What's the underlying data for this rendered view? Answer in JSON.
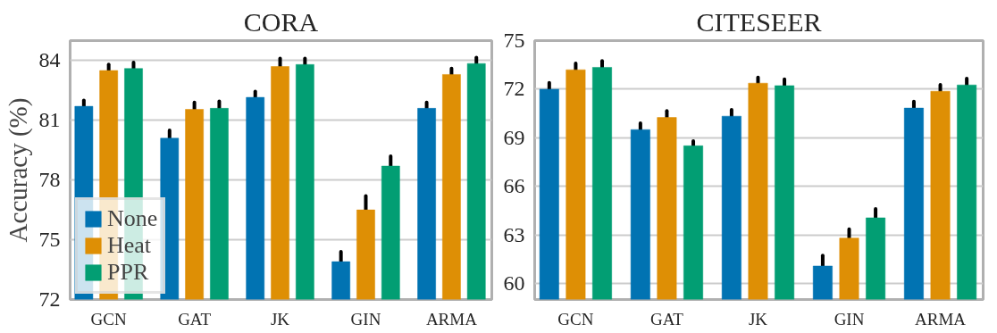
{
  "chart_data": [
    {
      "type": "bar",
      "title": "CORA",
      "ylabel": "Accuracy (%)",
      "categories": [
        "GCN",
        "GAT",
        "JK",
        "GIN",
        "ARMA"
      ],
      "ylim": [
        72,
        85
      ],
      "yticks": [
        72,
        75,
        78,
        81,
        84
      ],
      "grid": "y",
      "legend": "bottom left",
      "series": [
        {
          "name": "None",
          "color": "#0173b2",
          "values": [
            81.7,
            80.1,
            82.15,
            73.9,
            81.6
          ],
          "errors": [
            0.3,
            0.4,
            0.3,
            0.5,
            0.3
          ]
        },
        {
          "name": "Heat",
          "color": "#de8f05",
          "values": [
            83.5,
            81.55,
            83.7,
            76.5,
            83.3
          ],
          "errors": [
            0.3,
            0.35,
            0.4,
            0.7,
            0.3
          ]
        },
        {
          "name": "PPR",
          "color": "#029e73",
          "values": [
            83.6,
            81.6,
            83.8,
            78.7,
            83.85
          ],
          "errors": [
            0.3,
            0.35,
            0.3,
            0.5,
            0.3
          ]
        }
      ]
    },
    {
      "type": "bar",
      "title": "CITESEER",
      "categories": [
        "GCN",
        "GAT",
        "JK",
        "GIN",
        "ARMA"
      ],
      "ylim": [
        59,
        75
      ],
      "yticks": [
        60,
        63,
        66,
        69,
        72,
        75
      ],
      "grid": "y",
      "series": [
        {
          "color": "#0173b2",
          "values": [
            72.0,
            69.5,
            70.33,
            61.07,
            70.83
          ],
          "errors": [
            0.4,
            0.4,
            0.4,
            0.65,
            0.4
          ]
        },
        {
          "color": "#de8f05",
          "values": [
            73.2,
            70.25,
            72.37,
            62.8,
            71.87
          ],
          "errors": [
            0.4,
            0.4,
            0.35,
            0.55,
            0.4
          ]
        },
        {
          "color": "#029e73",
          "values": [
            73.35,
            68.5,
            72.22,
            64.05,
            72.26
          ],
          "errors": [
            0.4,
            0.3,
            0.4,
            0.55,
            0.4
          ]
        }
      ]
    }
  ]
}
